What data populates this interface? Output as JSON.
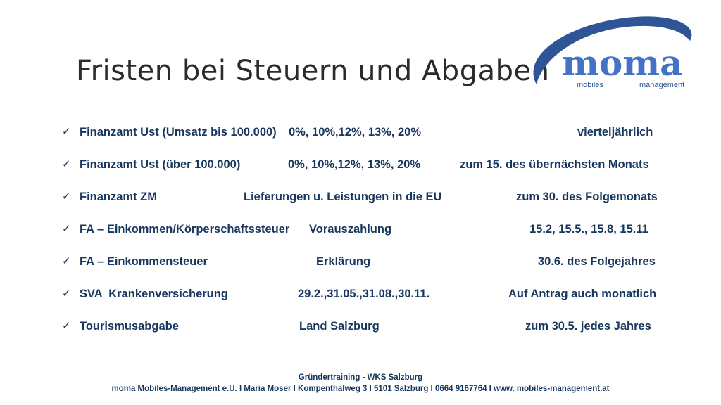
{
  "slide": {
    "title": "Fristen bei Steuern und Abgaben"
  },
  "logo": {
    "word": "moma",
    "left_word": "mobiles",
    "right_word": "management",
    "brand_color": "#2f5597"
  },
  "check_icon": "checkmark-icon",
  "rows": [
    {
      "label": "Finanzamt Ust (Umsatz bis 100.000)",
      "detail": "0%, 10%,12%, 13%, 20%",
      "deadline": "vierteljährlich"
    },
    {
      "label": "Finanzamt Ust (über 100.000)",
      "detail": "0%, 10%,12%, 13%, 20%",
      "deadline": "zum 15. des übernächsten Monats"
    },
    {
      "label": "Finanzamt ZM",
      "detail": "Lieferungen u. Leistungen in die EU",
      "deadline": "zum 30. des Folgemonats"
    },
    {
      "label": "FA – Einkommen/Körperschaftssteuer",
      "detail": "Vorauszahlung",
      "deadline": "15.2, 15.5., 15.8, 15.11"
    },
    {
      "label": "FA – Einkommensteuer",
      "detail": "Erklärung",
      "deadline": "30.6. des Folgejahres"
    },
    {
      "label": "SVA  Krankenversicherung",
      "detail": "29.2.,31.05.,31.08.,30.11.",
      "deadline": "Auf Antrag auch monatlich"
    },
    {
      "label": "Tourismusabgabe",
      "detail": "Land Salzburg",
      "deadline": "zum 30.5. jedes Jahres"
    }
  ],
  "footer": {
    "line1": "Gründertraining - WKS Salzburg",
    "line2": "moma Mobiles-Management e.U. l Maria Moser l Kompenthalweg 3 l 5101 Salzburg l 0664 9167764 l www. mobiles-management.at"
  },
  "colors": {
    "text_dark_blue": "#17375e",
    "title": "#2b2b2b"
  }
}
